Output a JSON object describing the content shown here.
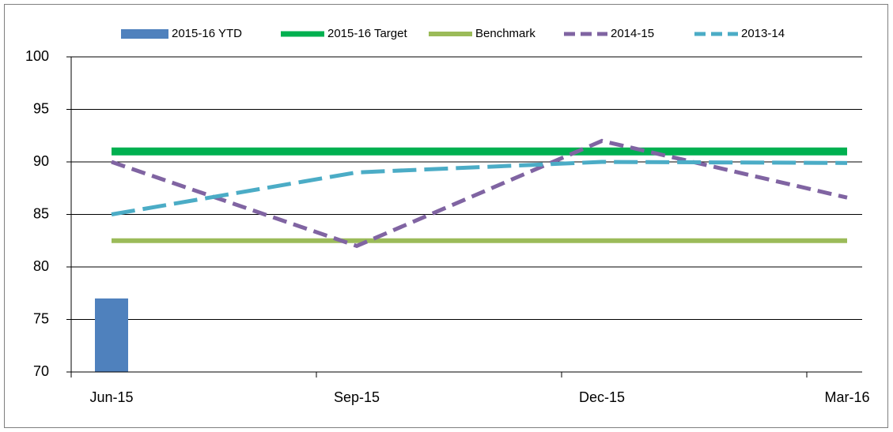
{
  "chart_data": {
    "type": "combo",
    "categories": [
      "Jun-15",
      "Sep-15",
      "Dec-15",
      "Mar-16"
    ],
    "series": [
      {
        "name": "2015-16 YTD",
        "type": "bar",
        "color": "#4f81bd",
        "values": [
          77,
          null,
          null,
          null
        ]
      },
      {
        "name": "2015-16 Target",
        "type": "line",
        "color": "#00b050",
        "width": 10,
        "dash": false,
        "values": [
          91,
          91,
          91,
          91
        ]
      },
      {
        "name": "Benchmark",
        "type": "line",
        "color": "#9bbb59",
        "width": 6,
        "dash": false,
        "values": [
          82.5,
          82.5,
          82.5,
          82.5
        ]
      },
      {
        "name": "2014-15",
        "type": "line",
        "color": "#8064a2",
        "width": 5,
        "dash": true,
        "values": [
          90,
          82,
          92,
          86.6
        ]
      },
      {
        "name": "2013-14",
        "type": "line",
        "color": "#4bacc6",
        "width": 5,
        "dash": true,
        "values": [
          85,
          89,
          90,
          89.9
        ]
      }
    ],
    "ylim": [
      70,
      100
    ],
    "yticks": [
      70,
      75,
      80,
      85,
      90,
      95,
      100
    ],
    "grid": true,
    "legend": "top"
  }
}
